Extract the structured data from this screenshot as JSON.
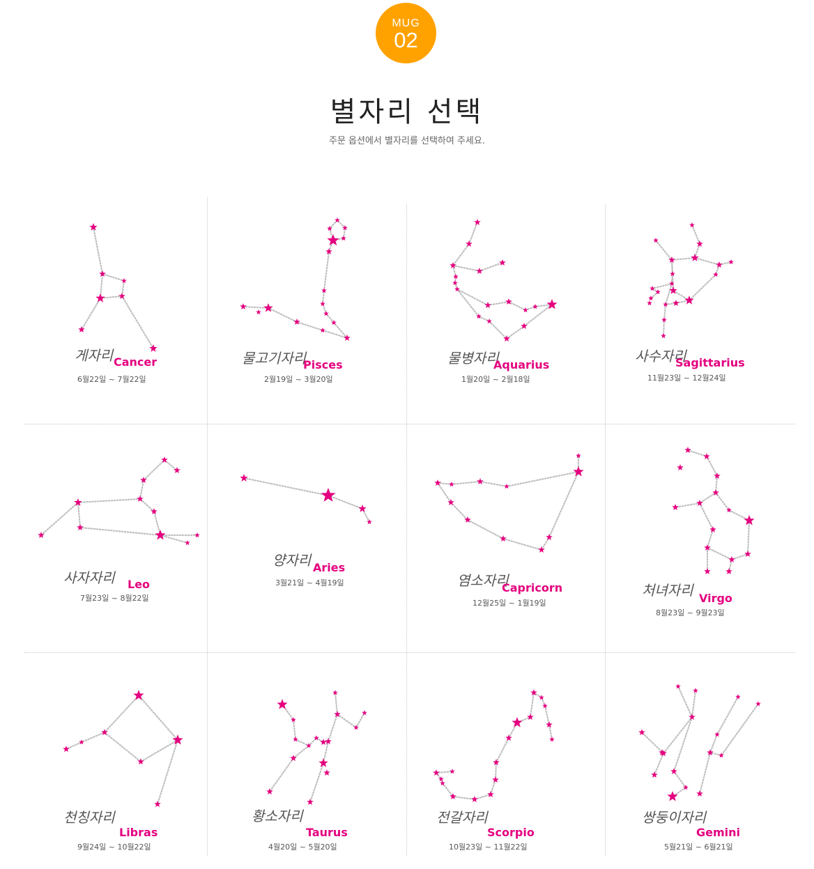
{
  "header": {
    "badge_label": "MUG",
    "badge_number": "02",
    "title": "별자리 선택",
    "subtitle": "주문 옵션에서 별자리를 선택하여 주세요."
  },
  "colors": {
    "badge": "#ffa200",
    "star": "#e4007f",
    "line": "#c0c0c0"
  },
  "star_icon": "star-icon",
  "constellations": [
    {
      "korean": "게자리",
      "english": "Cancer",
      "dates": "6월22일 ~ 7월22일"
    },
    {
      "korean": "물고기자리",
      "english": "Pisces",
      "dates": "2월19일 ~ 3월20일"
    },
    {
      "korean": "물병자리",
      "english": "Aquarius",
      "dates": "1월20일 ~ 2월18일"
    },
    {
      "korean": "사수자리",
      "english": "Sagittarius",
      "dates": "11월23일 ~ 12월24일"
    },
    {
      "korean": "사자자리",
      "english": "Leo",
      "dates": "7월23일 ~ 8월22일"
    },
    {
      "korean": "양자리",
      "english": "Aries",
      "dates": "3월21일 ~ 4월19일"
    },
    {
      "korean": "염소자리",
      "english": "Capricorn",
      "dates": "12월25일 ~ 1월19일"
    },
    {
      "korean": "처녀자리",
      "english": "Virgo",
      "dates": "8월23일 ~ 9월23일"
    },
    {
      "korean": "천칭자리",
      "english": "Libras",
      "dates": "9월24일 ~ 10월22일"
    },
    {
      "korean": "황소자리",
      "english": "Taurus",
      "dates": "4월20일 ~ 5월20일"
    },
    {
      "korean": "전갈자리",
      "english": "Scorpio",
      "dates": "10월23일 ~ 11월22일"
    },
    {
      "korean": "쌍둥이자리",
      "english": "Gemini",
      "dates": "5월21일 ~ 6월21일"
    }
  ]
}
